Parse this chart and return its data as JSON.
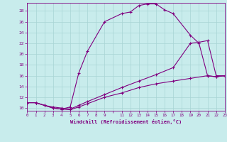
{
  "xlabel": "Windchill (Refroidissement éolien,°C)",
  "bg_color": "#c8ecec",
  "line_color": "#800080",
  "grid_color": "#a8d4d4",
  "xlim": [
    0,
    23
  ],
  "ylim": [
    9.5,
    29.5
  ],
  "xticks": [
    0,
    1,
    2,
    3,
    4,
    5,
    6,
    7,
    8,
    9,
    10,
    11,
    12,
    13,
    14,
    15,
    16,
    17,
    18,
    19,
    20,
    21,
    22,
    23
  ],
  "xticklabels": [
    "0",
    "1",
    "2",
    "3",
    "4",
    "5",
    "6",
    "7",
    "8",
    "9",
    "",
    "11",
    "12",
    "13",
    "14",
    "15",
    "16",
    "17",
    "18",
    "19",
    "20",
    "21",
    "22",
    "23"
  ],
  "yticks": [
    10,
    12,
    14,
    16,
    18,
    20,
    22,
    24,
    26,
    28
  ],
  "curve1_x": [
    0,
    1,
    2,
    3,
    4,
    5,
    6,
    7,
    9,
    11,
    12,
    13,
    14,
    15,
    16,
    17,
    19,
    20,
    21,
    22,
    23
  ],
  "curve1_y": [
    11,
    11,
    10.5,
    10,
    9.8,
    10.2,
    16.5,
    20.5,
    26,
    27.5,
    27.8,
    29,
    29.3,
    29.3,
    28.2,
    27.5,
    23.5,
    22,
    16,
    15.8,
    16
  ],
  "curve2_x": [
    0,
    1,
    2,
    3,
    4,
    5,
    6,
    7,
    9,
    11,
    13,
    15,
    17,
    19,
    20,
    21,
    22,
    23
  ],
  "curve2_y": [
    11,
    11,
    10.5,
    10.2,
    10.0,
    9.8,
    10.5,
    11.2,
    12.5,
    13.8,
    15.0,
    16.2,
    17.5,
    22.0,
    22.2,
    22.5,
    16.0,
    16.0
  ],
  "curve3_x": [
    0,
    1,
    2,
    3,
    4,
    5,
    6,
    7,
    9,
    11,
    13,
    15,
    17,
    19,
    21,
    22,
    23
  ],
  "curve3_y": [
    11,
    11,
    10.5,
    10.0,
    9.8,
    9.7,
    10.2,
    10.8,
    12.0,
    12.8,
    13.8,
    14.5,
    15.0,
    15.5,
    16.0,
    15.8,
    16.0
  ]
}
